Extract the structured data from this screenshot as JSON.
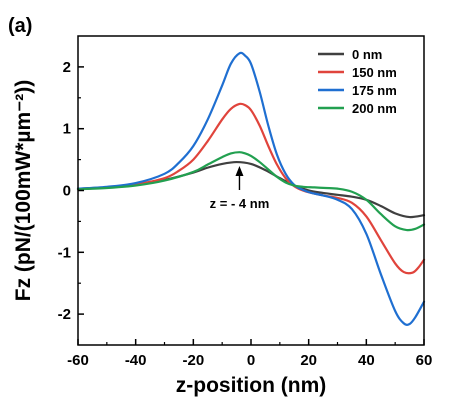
{
  "panel_label": "(a)",
  "chart_data": {
    "type": "line",
    "xlabel": "z-position (nm)",
    "ylabel": "Fz (pN/(100mW*µm⁻²))",
    "xlim": [
      -60,
      60
    ],
    "ylim": [
      -2.5,
      2.5
    ],
    "xticks": [
      -60,
      -40,
      -20,
      0,
      20,
      40,
      60
    ],
    "yticks": [
      -2,
      -1,
      0,
      1,
      2
    ],
    "xtick_labels": [
      "-60",
      "-40",
      "-20",
      "0",
      "20",
      "40",
      "60"
    ],
    "ytick_labels": [
      "-2",
      "-1",
      "0",
      "1",
      "2"
    ],
    "legend_position": "top-right",
    "grid": false,
    "annotation": {
      "text": "z = - 4 nm",
      "x": -4
    },
    "series": [
      {
        "name": "0 nm",
        "color": "#404040",
        "points": [
          [
            -60,
            0.03
          ],
          [
            -50,
            0.05
          ],
          [
            -40,
            0.09
          ],
          [
            -30,
            0.17
          ],
          [
            -20,
            0.29
          ],
          [
            -15,
            0.37
          ],
          [
            -10,
            0.43
          ],
          [
            -5,
            0.46
          ],
          [
            0,
            0.43
          ],
          [
            5,
            0.33
          ],
          [
            10,
            0.2
          ],
          [
            15,
            0.08
          ],
          [
            20,
            0.0
          ],
          [
            25,
            -0.04
          ],
          [
            30,
            -0.07
          ],
          [
            35,
            -0.1
          ],
          [
            40,
            -0.15
          ],
          [
            45,
            -0.25
          ],
          [
            50,
            -0.37
          ],
          [
            55,
            -0.43
          ],
          [
            60,
            -0.4
          ]
        ]
      },
      {
        "name": "150 nm",
        "color": "#e0443c",
        "points": [
          [
            -60,
            0.02
          ],
          [
            -50,
            0.05
          ],
          [
            -40,
            0.1
          ],
          [
            -30,
            0.2
          ],
          [
            -25,
            0.32
          ],
          [
            -20,
            0.5
          ],
          [
            -15,
            0.8
          ],
          [
            -10,
            1.15
          ],
          [
            -7,
            1.32
          ],
          [
            -4,
            1.4
          ],
          [
            -2,
            1.38
          ],
          [
            0,
            1.3
          ],
          [
            3,
            1.05
          ],
          [
            6,
            0.72
          ],
          [
            9,
            0.42
          ],
          [
            12,
            0.2
          ],
          [
            15,
            0.07
          ],
          [
            18,
            0.0
          ],
          [
            21,
            -0.04
          ],
          [
            25,
            -0.08
          ],
          [
            30,
            -0.12
          ],
          [
            35,
            -0.2
          ],
          [
            40,
            -0.42
          ],
          [
            45,
            -0.8
          ],
          [
            50,
            -1.18
          ],
          [
            53,
            -1.32
          ],
          [
            56,
            -1.33
          ],
          [
            58,
            -1.25
          ],
          [
            60,
            -1.12
          ]
        ]
      },
      {
        "name": "175 nm",
        "color": "#1f6fd1",
        "points": [
          [
            -60,
            0.03
          ],
          [
            -50,
            0.06
          ],
          [
            -40,
            0.12
          ],
          [
            -30,
            0.27
          ],
          [
            -25,
            0.45
          ],
          [
            -20,
            0.72
          ],
          [
            -15,
            1.15
          ],
          [
            -10,
            1.7
          ],
          [
            -7,
            2.05
          ],
          [
            -4,
            2.22
          ],
          [
            -2,
            2.18
          ],
          [
            0,
            2.05
          ],
          [
            3,
            1.6
          ],
          [
            6,
            1.05
          ],
          [
            9,
            0.58
          ],
          [
            12,
            0.27
          ],
          [
            15,
            0.09
          ],
          [
            18,
            0.01
          ],
          [
            21,
            -0.04
          ],
          [
            25,
            -0.08
          ],
          [
            30,
            -0.15
          ],
          [
            35,
            -0.3
          ],
          [
            40,
            -0.7
          ],
          [
            45,
            -1.35
          ],
          [
            50,
            -1.95
          ],
          [
            53,
            -2.15
          ],
          [
            55,
            -2.16
          ],
          [
            57,
            -2.05
          ],
          [
            60,
            -1.8
          ]
        ]
      },
      {
        "name": "200 nm",
        "color": "#22a050",
        "points": [
          [
            -60,
            0.02
          ],
          [
            -50,
            0.04
          ],
          [
            -40,
            0.08
          ],
          [
            -30,
            0.16
          ],
          [
            -20,
            0.3
          ],
          [
            -15,
            0.42
          ],
          [
            -10,
            0.54
          ],
          [
            -7,
            0.6
          ],
          [
            -4,
            0.62
          ],
          [
            -2,
            0.6
          ],
          [
            0,
            0.56
          ],
          [
            3,
            0.46
          ],
          [
            6,
            0.34
          ],
          [
            9,
            0.22
          ],
          [
            12,
            0.13
          ],
          [
            15,
            0.08
          ],
          [
            18,
            0.06
          ],
          [
            22,
            0.05
          ],
          [
            26,
            0.04
          ],
          [
            30,
            0.03
          ],
          [
            35,
            -0.02
          ],
          [
            40,
            -0.15
          ],
          [
            45,
            -0.38
          ],
          [
            50,
            -0.58
          ],
          [
            54,
            -0.64
          ],
          [
            57,
            -0.62
          ],
          [
            60,
            -0.55
          ]
        ]
      }
    ]
  }
}
